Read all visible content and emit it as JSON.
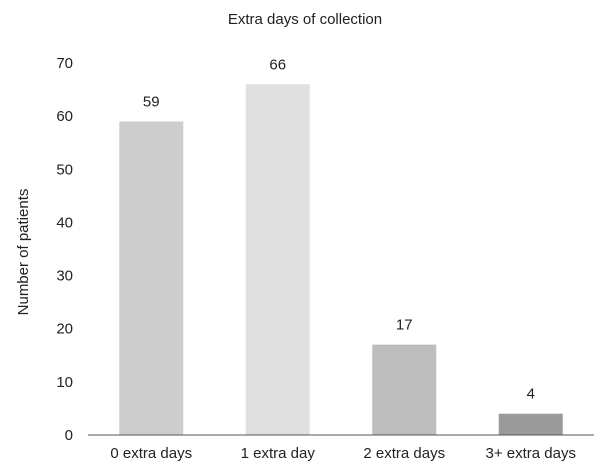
{
  "chart_data": {
    "type": "bar",
    "title": "Extra days of collection",
    "xlabel": "",
    "ylabel": "Number of patients",
    "categories": [
      "0 extra days",
      "1 extra day",
      "2 extra days",
      "3+ extra days"
    ],
    "values": [
      59,
      66,
      17,
      4
    ],
    "data_labels": [
      "59",
      "66",
      "17",
      "4"
    ],
    "yticks": [
      0,
      10,
      20,
      30,
      40,
      50,
      60,
      70
    ],
    "ylim": [
      0,
      70
    ],
    "grid": false,
    "legend": "none",
    "bar_colors": [
      "#cdcdcd",
      "#e0e0e0",
      "#bdbdbd",
      "#9a9a9a"
    ]
  }
}
